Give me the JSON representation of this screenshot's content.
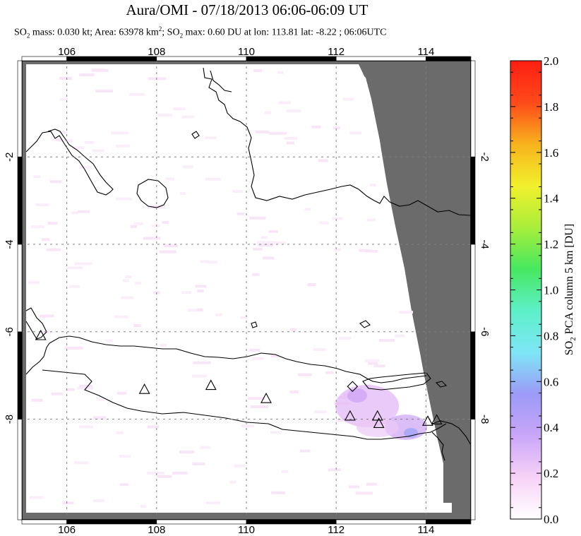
{
  "title": "Aura/OMI - 07/18/2013 06:06-06:09 UT",
  "subtitle": {
    "so2_mass_prefix": "SO",
    "so2_mass_text": " mass: 0.030 kt; Area: 63978 km",
    "area_sup": "2",
    "max_prefix": "; SO",
    "max_text": " max: 0.60 DU at lon: 113.81 lat: -8.22 ; 06:06UTC",
    "sub2": "2"
  },
  "chart_data": {
    "type": "heatmap",
    "xlim": [
      105,
      115
    ],
    "ylim": [
      -10.3,
      0.2
    ],
    "x_ticks": [
      106,
      108,
      110,
      112,
      114
    ],
    "x_tick_labels": [
      "106",
      "108",
      "110",
      "112",
      "114"
    ],
    "y_ticks": [
      -2,
      -4,
      -6,
      -8
    ],
    "y_tick_labels": [
      "-2",
      "-4",
      "-6",
      "-8"
    ],
    "grid": true,
    "colorbar": {
      "label": "SO2 PCA column 5 km [DU]",
      "label_prefix": "SO",
      "label_sub": "2",
      "label_suffix": " PCA column 5 km [DU]",
      "range": [
        0.0,
        2.0
      ],
      "ticks": [
        "0.0",
        "0.2",
        "0.4",
        "0.6",
        "0.8",
        "1.0",
        "1.2",
        "1.4",
        "1.6",
        "1.8",
        "2.0"
      ],
      "colors": [
        "#ffffff",
        "#f7d2f7",
        "#c9a6f8",
        "#9c9af7",
        "#7ee6f6",
        "#5df0c8",
        "#46e860",
        "#a8ee3a",
        "#f2f02c",
        "#f7b21c",
        "#ff4a1a",
        "#ff1e12"
      ]
    },
    "no_data_color": "#6b6b6b",
    "volcanoes": [
      {
        "lon": 105.42,
        "lat": -6.1
      },
      {
        "lon": 107.73,
        "lat": -7.33
      },
      {
        "lon": 109.21,
        "lat": -7.24
      },
      {
        "lon": 110.44,
        "lat": -7.54
      },
      {
        "lon": 112.31,
        "lat": -7.94
      },
      {
        "lon": 112.92,
        "lat": -7.94
      },
      {
        "lon": 112.95,
        "lat": -8.11
      },
      {
        "lon": 114.04,
        "lat": -8.06
      },
      {
        "lon": 114.24,
        "lat": -8.03
      }
    ],
    "so2_max": {
      "value": 0.6,
      "lon": 113.81,
      "lat": -8.22
    }
  }
}
